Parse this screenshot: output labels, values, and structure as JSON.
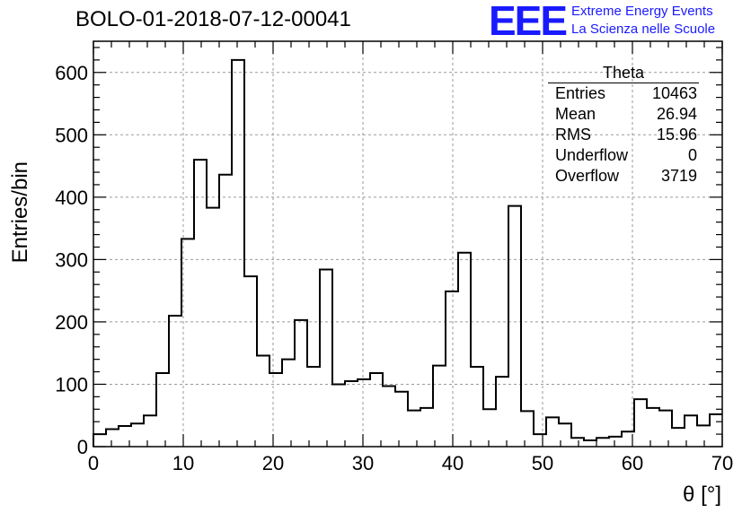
{
  "title": "BOLO-01-2018-07-12-00041",
  "logo": {
    "mark": "EEE",
    "line1": "Extreme Energy Events",
    "line2": "La Scienza nelle Scuole",
    "color": "#1a1aff"
  },
  "stats": {
    "title": "Theta",
    "rows": [
      {
        "label": "Entries",
        "value": "10463"
      },
      {
        "label": "Mean",
        "value": "26.94"
      },
      {
        "label": "RMS",
        "value": "15.96"
      },
      {
        "label": "Underflow",
        "value": "0"
      },
      {
        "label": "Overflow",
        "value": "3719"
      }
    ]
  },
  "chart_data": {
    "type": "bar",
    "style": "step-histogram",
    "xlabel": "θ [°]",
    "ylabel": "Entries/bin",
    "xlim": [
      0,
      70
    ],
    "ylim": [
      0,
      650
    ],
    "bin_width": 1.4,
    "xticks": [
      0,
      10,
      20,
      30,
      40,
      50,
      60,
      70
    ],
    "yticks": [
      0,
      100,
      200,
      300,
      400,
      500,
      600
    ],
    "grid": true,
    "line_color": "#000000",
    "values": [
      20,
      28,
      33,
      37,
      50,
      118,
      210,
      333,
      460,
      383,
      436,
      620,
      273,
      146,
      118,
      140,
      203,
      128,
      284,
      100,
      105,
      108,
      118,
      97,
      88,
      58,
      62,
      130,
      249,
      311,
      128,
      60,
      112,
      386,
      57,
      20,
      47,
      37,
      14,
      10,
      14,
      16,
      24,
      76,
      62,
      58,
      30,
      50,
      34,
      52
    ]
  }
}
